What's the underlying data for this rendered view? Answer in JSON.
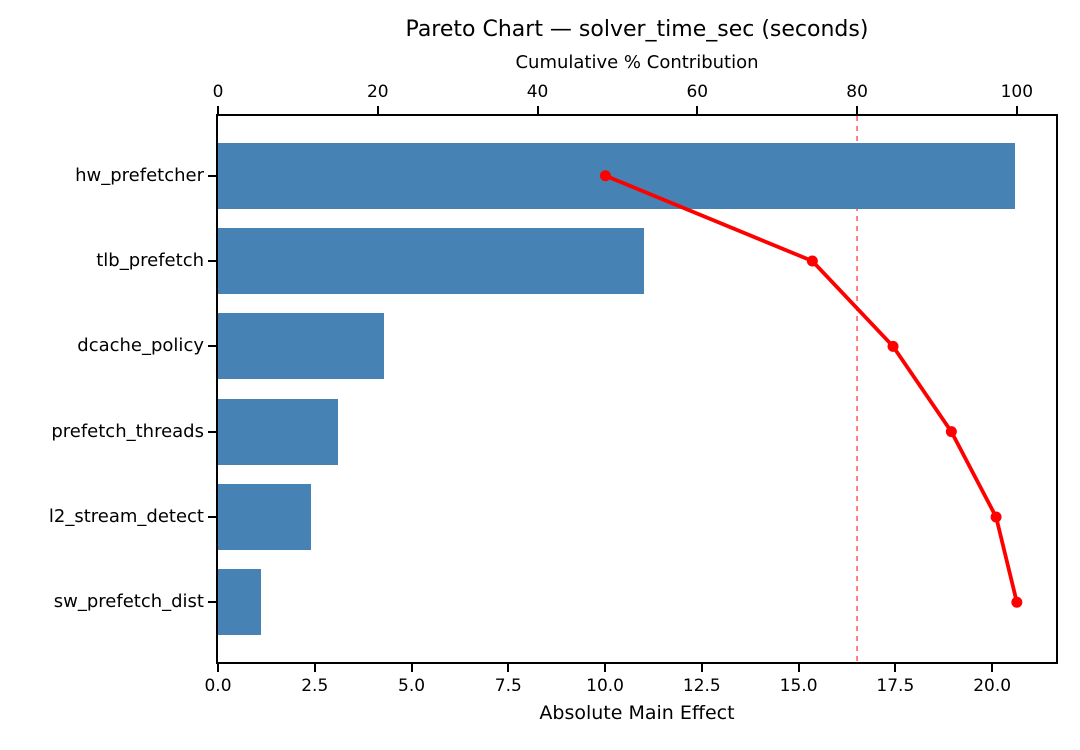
{
  "figure": {
    "title": "Pareto Chart — solver_time_sec (seconds)"
  },
  "chart_data": {
    "type": "bar",
    "subtype": "pareto-horizontal-bars-with-cumulative-line",
    "title": "Pareto Chart — solver_time_sec (seconds)",
    "categories": [
      "hw_prefetcher",
      "tlb_prefetch",
      "dcache_policy",
      "prefetch_threads",
      "l2_stream_detect",
      "sw_prefetch_dist"
    ],
    "series": [
      {
        "name": "Absolute Main Effect",
        "type": "barh",
        "values": [
          20.6,
          11.0,
          4.3,
          3.1,
          2.4,
          1.1
        ]
      },
      {
        "name": "Cumulative % Contribution",
        "type": "line",
        "values": [
          48.5,
          74.4,
          84.5,
          91.8,
          97.4,
          100.0
        ]
      }
    ],
    "bottom_axis": {
      "label": "Absolute Main Effect",
      "tick_values": [
        0,
        2.5,
        5,
        7.5,
        10,
        12.5,
        15,
        17.5,
        20
      ],
      "tick_labels": [
        "0.0",
        "2.5",
        "5.0",
        "7.5",
        "10.0",
        "12.5",
        "15.0",
        "17.5",
        "20.0"
      ],
      "xlim": [
        0,
        21.65
      ]
    },
    "top_axis": {
      "label": "Cumulative % Contribution",
      "tick_values": [
        0,
        20,
        40,
        60,
        80,
        100
      ],
      "tick_labels": [
        "0",
        "20",
        "40",
        "60",
        "80",
        "100"
      ],
      "xlim": [
        0,
        104.9
      ]
    },
    "reference_line_pct": 80,
    "grid": "off",
    "legend": "none",
    "colors": {
      "bar": "#4682b4",
      "line": "#ff0000",
      "marker": "#ff0000",
      "reference": "#ff7373",
      "text": "#000000"
    }
  }
}
